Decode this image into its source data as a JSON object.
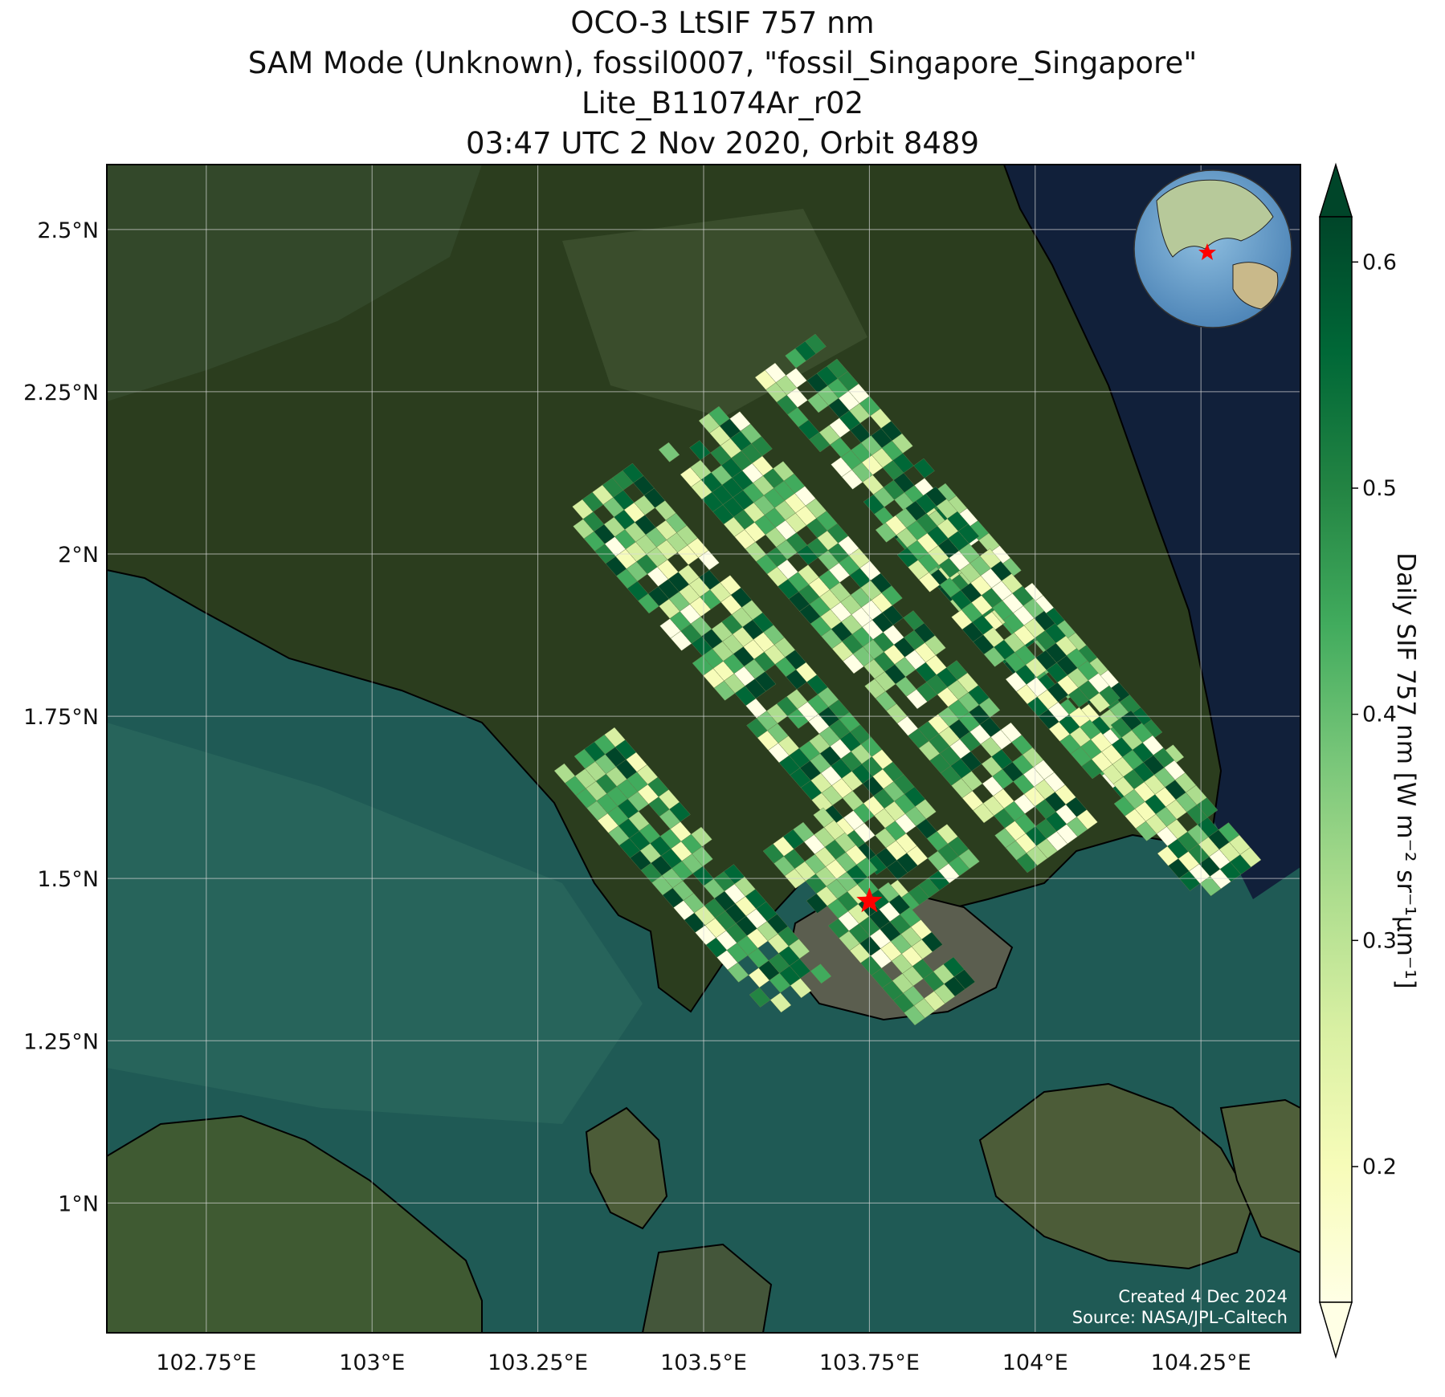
{
  "title": {
    "line1": "OCO-3 LtSIF 757 nm",
    "line2": "SAM Mode (Unknown), fossil0007, \"fossil_Singapore_Singapore\"",
    "line3": "Lite_B11074Ar_r02",
    "line4": "03:47 UTC 2 Nov 2020, Orbit 8489"
  },
  "map": {
    "extent": {
      "lon_min": 102.6,
      "lon_max": 104.4,
      "lat_min": 0.8,
      "lat_max": 2.6
    },
    "lon_ticks": [
      {
        "value": 102.75,
        "label": "102.75°E"
      },
      {
        "value": 103.0,
        "label": "103°E"
      },
      {
        "value": 103.25,
        "label": "103.25°E"
      },
      {
        "value": 103.5,
        "label": "103.5°E"
      },
      {
        "value": 103.75,
        "label": "103.75°E"
      },
      {
        "value": 104.0,
        "label": "104°E"
      },
      {
        "value": 104.25,
        "label": "104.25°E"
      }
    ],
    "lat_ticks": [
      {
        "value": 2.5,
        "label": "2.5°N"
      },
      {
        "value": 2.25,
        "label": "2.25°N"
      },
      {
        "value": 2.0,
        "label": "2°N"
      },
      {
        "value": 1.75,
        "label": "1.75°N"
      },
      {
        "value": 1.5,
        "label": "1.5°N"
      },
      {
        "value": 1.25,
        "label": "1.25°N"
      },
      {
        "value": 1.0,
        "label": "1°N"
      }
    ],
    "target": {
      "lon": 103.75,
      "lat": 1.465,
      "marker": "red-star-icon",
      "color": "#ff0000"
    },
    "grid": true,
    "basemap": "satellite-imagery",
    "inset": "globe-locator",
    "credits": {
      "created": "Created 4 Dec 2024",
      "source": "Source: NASA/JPL-Caltech"
    }
  },
  "colorbar": {
    "label": "Daily SIF 757 nm [W m⁻² sr⁻¹μm⁻¹]",
    "range": [
      0.14,
      0.62
    ],
    "ticks": [
      {
        "value": 0.2,
        "label": "0.2"
      },
      {
        "value": 0.3,
        "label": "0.3"
      },
      {
        "value": 0.4,
        "label": "0.4"
      },
      {
        "value": 0.5,
        "label": "0.5"
      },
      {
        "value": 0.6,
        "label": "0.6"
      }
    ],
    "colormap": [
      "#ffffe5",
      "#f7fcb9",
      "#d9f0a3",
      "#addd8e",
      "#78c679",
      "#41ab5d",
      "#238443",
      "#006837",
      "#004529"
    ],
    "extend": "both"
  },
  "colors": {
    "land": "#2b3d1e",
    "sea": "#1f5a55",
    "deep_sea": "#11203a",
    "target": "#ff0000"
  }
}
